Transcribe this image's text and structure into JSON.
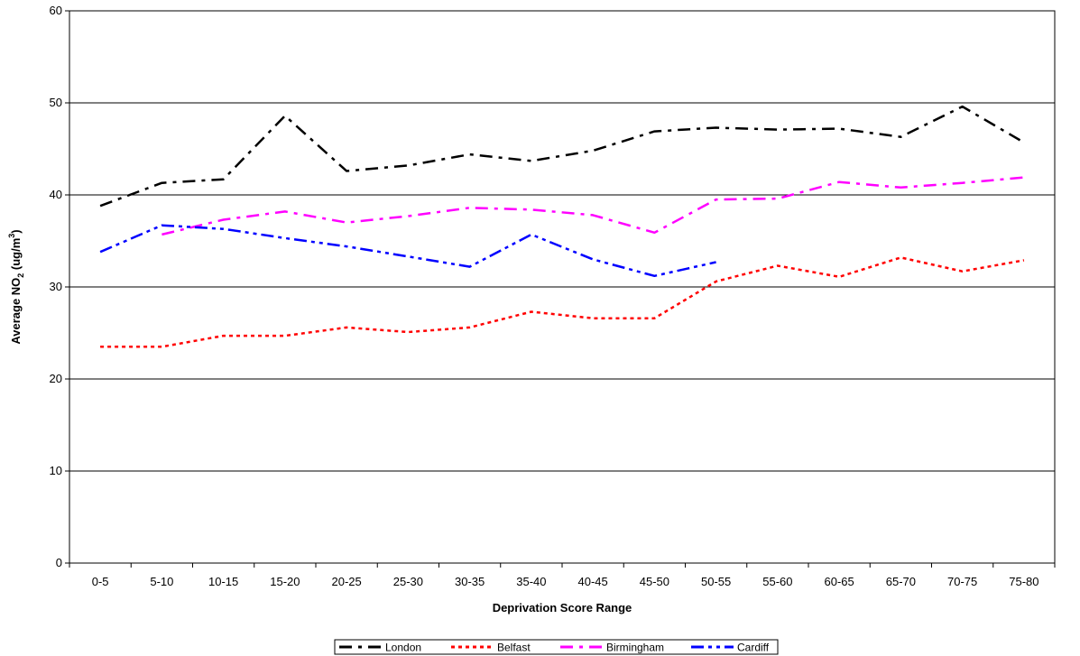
{
  "chart_data": {
    "type": "line",
    "title": "",
    "xlabel": "Deprivation Score Range",
    "ylabel": {
      "prefix": "Average NO",
      "sub": "2",
      "mid": " (ug/m",
      "sup": "3",
      "suffix": ")"
    },
    "ylim": [
      0,
      60
    ],
    "yticks": [
      "0",
      "10",
      "20",
      "30",
      "40",
      "50",
      "60"
    ],
    "grid": true,
    "legend_position": "bottom",
    "categories": [
      "0-5",
      "5-10",
      "10-15",
      "15-20",
      "20-25",
      "25-30",
      "30-35",
      "35-40",
      "40-45",
      "45-50",
      "50-55",
      "55-60",
      "60-65",
      "65-70",
      "70-75",
      "75-80"
    ],
    "series": [
      {
        "name": "London",
        "color": "#000000",
        "dash": "14,7,4,7",
        "values": [
          38.8,
          41.3,
          41.7,
          48.6,
          42.6,
          43.2,
          44.4,
          43.7,
          44.8,
          46.9,
          47.3,
          47.1,
          47.2,
          46.3,
          49.6,
          45.7
        ]
      },
      {
        "name": "Belfast",
        "color": "#ff0000",
        "dash": "4,4",
        "values": [
          23.5,
          23.5,
          24.7,
          24.7,
          25.6,
          25.1,
          25.6,
          27.3,
          26.6,
          26.6,
          30.6,
          32.3,
          31.1,
          33.2,
          31.7,
          32.9
        ]
      },
      {
        "name": "Birmingham",
        "color": "#ff00ff",
        "dash": "14,7,4,7",
        "values": [
          null,
          35.7,
          37.3,
          38.2,
          37.0,
          37.7,
          38.6,
          38.4,
          37.8,
          35.9,
          39.5,
          39.6,
          41.4,
          40.8,
          41.3,
          41.9
        ]
      },
      {
        "name": "Cardiff",
        "color": "#0000ff",
        "dash": "14,5,4,5,4,5",
        "values": [
          33.8,
          36.7,
          36.3,
          35.3,
          34.4,
          33.3,
          32.2,
          35.7,
          33.0,
          31.2,
          32.7,
          null,
          null,
          null,
          null,
          null
        ]
      }
    ]
  }
}
